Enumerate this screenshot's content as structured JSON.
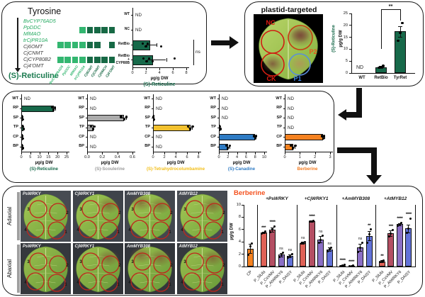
{
  "strings": {
    "nd": "ND"
  },
  "figure": {
    "panel_a": {
      "substrate": "Tyrosine",
      "product": "(S)-Reticuline",
      "genes": [
        {
          "label": "BvCYP76AD5",
          "color": "#23a95f"
        },
        {
          "label": "PpDDC",
          "color": "#23a95f"
        },
        {
          "label": "MlMAO",
          "color": "#23a95f"
        },
        {
          "label": "trCjPR10A",
          "color": "#23a95f"
        },
        {
          "label": "Cj6OMT",
          "color": "#3d3d3d"
        },
        {
          "label": "CjCNMT",
          "color": "#3d3d3d"
        },
        {
          "label": "CjCYP80B2",
          "color": "#3d3d3d"
        },
        {
          "label": "Cj4'OMT",
          "color": "#3d3d3d"
        }
      ],
      "grid": {
        "columns": [
          {
            "label": "BvCYP76AD5",
            "color": "#33b670"
          },
          {
            "label": "PpDDC",
            "color": "#33b670"
          },
          {
            "label": "MlMAO",
            "color": "#33b670"
          },
          {
            "label": "trCjPR10A",
            "color": "#33b670"
          },
          {
            "label": "Cj6OMT",
            "color": "#176945"
          },
          {
            "label": "CjCNMT",
            "color": "#176945"
          },
          {
            "label": "CjNMCH",
            "color": "#176945"
          },
          {
            "label": "Cj4'OMT",
            "color": "#176945"
          }
        ],
        "rows": [
          {
            "label": "NC",
            "cells": [
              0,
              0,
              0,
              1,
              1,
              1,
              1,
              1
            ]
          },
          {
            "label": "RetBio",
            "cells": [
              1,
              1,
              1,
              1,
              1,
              1,
              0,
              1
            ]
          },
          {
            "label": "RetBio + CYP80B",
            "cells": [
              1,
              1,
              1,
              1,
              1,
              1,
              1,
              1
            ]
          }
        ]
      }
    },
    "plastid_leaf": {
      "title": "plastid-targeted",
      "spots": [
        {
          "label": "NC",
          "color": "#e01910",
          "patch": false
        },
        {
          "label": "P2",
          "color": "#e8571c",
          "patch": true
        },
        {
          "label": "CK",
          "color": "#e01910",
          "patch": true
        },
        {
          "label": "P1",
          "color": "#3f86e8",
          "patch": true
        }
      ]
    },
    "leaf_panel": {
      "row_labels": [
        "Adaxial",
        "Abaxial"
      ],
      "leaf_labels": [
        "PsWRKY",
        "CjWRKY1",
        "AmMYB308",
        "AtMYB12"
      ],
      "spot_numbers": [
        "3",
        "2",
        "4",
        "1"
      ],
      "patches": [
        [],
        [
          "tr"
        ],
        [
          "tl",
          "tr"
        ],
        [
          "tr"
        ]
      ]
    }
  },
  "chart_data": [
    {
      "id": "infiltration_reticuline",
      "type": "bar",
      "orientation": "horizontal",
      "title": "(S)-Reticuline",
      "title_color": "#17694a",
      "bar_color": "#17694a",
      "xlabel": "µg/g DW",
      "xlim": [
        0,
        8
      ],
      "xticks": [
        0,
        2,
        4,
        6,
        8
      ],
      "categories": [
        "WT",
        "NC",
        "RetBio",
        "RetBio\n+\nCYP80B"
      ],
      "values": [
        null,
        null,
        2.6,
        3.0
      ],
      "dots": [
        [],
        [],
        [
          1.5,
          2.0,
          2.3,
          4.3
        ],
        [
          1.6,
          2.1,
          2.5,
          3.0,
          6.3
        ]
      ],
      "errors": [
        null,
        null,
        [
          2.0,
          3.6
        ],
        [
          2.2,
          5.0
        ]
      ],
      "sig": {
        "label": "ns",
        "rows": [
          2,
          3
        ]
      }
    },
    {
      "id": "plastid_reticuline",
      "type": "bar",
      "orientation": "vertical",
      "ylabel_line1": "(S)-Reticuline",
      "ylabel_line2": "µg/g DW",
      "ylabel_color": "#17694a",
      "bar_color": "#17694a",
      "ylim": [
        0,
        25
      ],
      "yticks": [
        0,
        5,
        10,
        15,
        20,
        25
      ],
      "categories": [
        "WT",
        "RetBio",
        "TyrRet"
      ],
      "values": [
        null,
        2.5,
        17.5
      ],
      "dots": [
        [],
        [
          2.2,
          2.5,
          2.9
        ],
        [
          13.5,
          17.0,
          21.0
        ]
      ],
      "errors": [
        null,
        [
          2.2,
          2.9
        ],
        [
          15.3,
          19.7
        ]
      ],
      "sig": {
        "label": "**",
        "from": 1,
        "to": 2
      }
    },
    {
      "id": "mod_reticuline",
      "type": "bar",
      "orientation": "horizontal",
      "title": "(S)-Reticuline",
      "title_color": "#17694a",
      "bar_color": "#17694a",
      "xlabel": "µg/g DW",
      "xlim": [
        0,
        25
      ],
      "xticks": [
        0,
        5,
        10,
        15,
        20,
        25
      ],
      "categories": [
        "WT",
        "RP",
        "SP",
        "TP",
        "CP",
        "BP"
      ],
      "values": [
        null,
        18,
        0.6,
        1.1,
        0.7,
        0.8
      ],
      "dots": [
        [],
        [
          17.1,
          17.9,
          18.5
        ],
        [
          0.5,
          0.8
        ],
        [
          0.9,
          1.3
        ],
        [
          0.5,
          0.9
        ],
        [
          0.6,
          1.0
        ]
      ],
      "errors": [
        null,
        [
          17.4,
          18.8
        ],
        null,
        null,
        null,
        null
      ]
    },
    {
      "id": "mod_scoulerine",
      "type": "bar",
      "orientation": "horizontal",
      "title": "(S)-Scoulerine",
      "title_color": "#9b9b9b",
      "bar_color": "#ababab",
      "xlabel": "µg/g DW",
      "xlim": [
        0,
        0.6
      ],
      "xticks": [
        "0.0",
        "0.2",
        "0.4",
        "0.6"
      ],
      "categories": [
        "WT",
        "RP",
        "SP",
        "TP",
        "CP",
        "BP"
      ],
      "values": [
        null,
        null,
        0.49,
        0.08,
        null,
        null
      ],
      "dots": [
        [],
        [],
        [
          0.45,
          0.49,
          0.52
        ],
        [
          0.05,
          0.08,
          0.1
        ],
        [],
        []
      ],
      "errors": [
        null,
        null,
        [
          0.46,
          0.52
        ],
        null,
        null,
        null
      ]
    },
    {
      "id": "mod_tetrahydrocolumbamine",
      "type": "bar",
      "orientation": "horizontal",
      "title": "(S)-Tetrahydrocolumbamine",
      "title_color": "#f2be17",
      "bar_color": "#f2c12e",
      "xlabel": "µg/g DW",
      "xlim": [
        0,
        8
      ],
      "xticks": [
        0,
        2,
        4,
        6,
        8
      ],
      "categories": [
        "WT",
        "RP",
        "SP",
        "TP",
        "CP",
        "BP"
      ],
      "values": [
        null,
        null,
        0.15,
        6.6,
        null,
        null
      ],
      "dots": [
        [],
        [],
        [
          0.1,
          0.2
        ],
        [
          6.2,
          6.6,
          7.0
        ],
        [],
        []
      ],
      "errors": [
        null,
        null,
        null,
        [
          6.3,
          6.9
        ],
        null,
        null
      ]
    },
    {
      "id": "mod_canadine",
      "type": "bar",
      "orientation": "horizontal",
      "title": "(S)-Canadine",
      "title_color": "#2e7bc4",
      "bar_color": "#2e7bc4",
      "xlabel": "µg/g DW",
      "xlim": [
        0,
        10
      ],
      "xticks": [
        0,
        2,
        4,
        6,
        8,
        10
      ],
      "categories": [
        "WT",
        "RP",
        "SP",
        "TP",
        "CP",
        "BP"
      ],
      "values": [
        null,
        null,
        null,
        0.25,
        7.95,
        2.0
      ],
      "dots": [
        [],
        [],
        [],
        [
          0.2,
          0.35
        ],
        [
          7.7,
          8.0,
          8.2
        ],
        [
          1.7,
          2.0,
          2.4
        ]
      ],
      "errors": [
        null,
        null,
        null,
        null,
        [
          7.8,
          8.15
        ],
        [
          1.8,
          2.3
        ]
      ]
    },
    {
      "id": "mod_berberine",
      "type": "bar",
      "orientation": "horizontal",
      "title": "Berberine",
      "title_color": "#f47b20",
      "bar_color": "#f58220",
      "xlabel": "µg/g DW",
      "xlim": [
        0,
        3
      ],
      "xticks": [
        0,
        1,
        2,
        3
      ],
      "categories": [
        "WT",
        "RP",
        "SP",
        "TP",
        "CP",
        "BP"
      ],
      "values": [
        null,
        null,
        null,
        null,
        2.55,
        0.55
      ],
      "dots": [
        [],
        [],
        [],
        [],
        [
          2.45,
          2.55,
          2.62
        ],
        [
          0.42,
          0.55,
          0.7
        ]
      ],
      "errors": [
        null,
        null,
        null,
        null,
        [
          2.48,
          2.62
        ],
        [
          0.45,
          0.65
        ]
      ]
    },
    {
      "id": "berberine_tf",
      "type": "bar",
      "orientation": "vertical",
      "title": "Berberine",
      "title_color": "#f4511e",
      "ylabel": "µg/g DW",
      "ylim": [
        0,
        10
      ],
      "yticks": [
        0,
        2,
        4,
        6,
        8,
        10
      ],
      "lead_bar": {
        "cat": "CP",
        "color": "#f58220",
        "value": 2.9,
        "err": [
          2.15,
          3.65
        ],
        "dots": [
          1.85,
          3.25,
          3.7
        ]
      },
      "promoters": [
        "P_SlUbi",
        "P_CsVMV",
        "P_AtWRKY6",
        "P_DAISY"
      ],
      "promoter_colors": [
        "#df6156",
        "#b44f63",
        "#8b6fc5",
        "#6272d8"
      ],
      "groups": [
        {
          "label": "+PsWRKY",
          "values": [
            5.5,
            6.0,
            1.9,
            1.7
          ],
          "sig": [
            "***",
            "****",
            "ns",
            "ns"
          ],
          "errs": [
            [
              5.35,
              5.65
            ],
            [
              5.6,
              6.35
            ],
            [
              1.6,
              2.2
            ],
            [
              1.45,
              1.95
            ]
          ],
          "dots": [
            [
              5.4,
              5.5,
              5.65
            ],
            [
              5.6,
              6.0,
              6.5
            ],
            [
              1.5,
              1.9,
              2.2
            ],
            [
              1.4,
              1.7,
              2.0
            ]
          ]
        },
        {
          "label": "+CjWRKY1",
          "values": [
            3.85,
            7.35,
            4.4,
            2.8
          ],
          "sig": [
            "ns",
            "****",
            "ns",
            "ns"
          ],
          "errs": [
            [
              3.7,
              4.0
            ],
            [
              7.2,
              7.5
            ],
            [
              3.9,
              4.95
            ],
            [
              2.55,
              3.05
            ]
          ],
          "dots": [
            [
              3.7,
              3.85,
              4.0
            ],
            [
              7.25,
              7.35,
              7.45
            ],
            [
              3.9,
              4.3,
              5.0
            ],
            [
              2.5,
              2.8,
              3.1
            ]
          ]
        },
        {
          "label": "+AmMYB308",
          "values": [
            0.15,
            0.1,
            3.1,
            5.0
          ],
          "sig": [
            "****",
            "****",
            "ns",
            "**"
          ],
          "errs": [
            [
              0.05,
              0.25
            ],
            [
              0.05,
              0.15
            ],
            [
              2.5,
              3.7
            ],
            [
              4.2,
              5.8
            ]
          ],
          "dots": [
            [
              0.05,
              0.15,
              0.3
            ],
            [
              0.05,
              0.1,
              0.15
            ],
            [
              2.3,
              3.1,
              3.8
            ],
            [
              3.9,
              5.2,
              6.0
            ]
          ]
        },
        {
          "label": "+AtMYB12",
          "values": [
            0.85,
            5.4,
            6.85,
            6.15
          ],
          "sig": [
            "**",
            "***",
            "****",
            "****"
          ],
          "errs": [
            [
              0.7,
              1.0
            ],
            [
              4.95,
              5.85
            ],
            [
              6.65,
              7.05
            ],
            [
              5.5,
              6.8
            ]
          ],
          "dots": [
            [
              0.7,
              0.85,
              1.0
            ],
            [
              4.9,
              5.4,
              5.9
            ],
            [
              6.6,
              6.85,
              7.1
            ],
            [
              5.5,
              6.1,
              7.8
            ]
          ]
        }
      ]
    }
  ]
}
